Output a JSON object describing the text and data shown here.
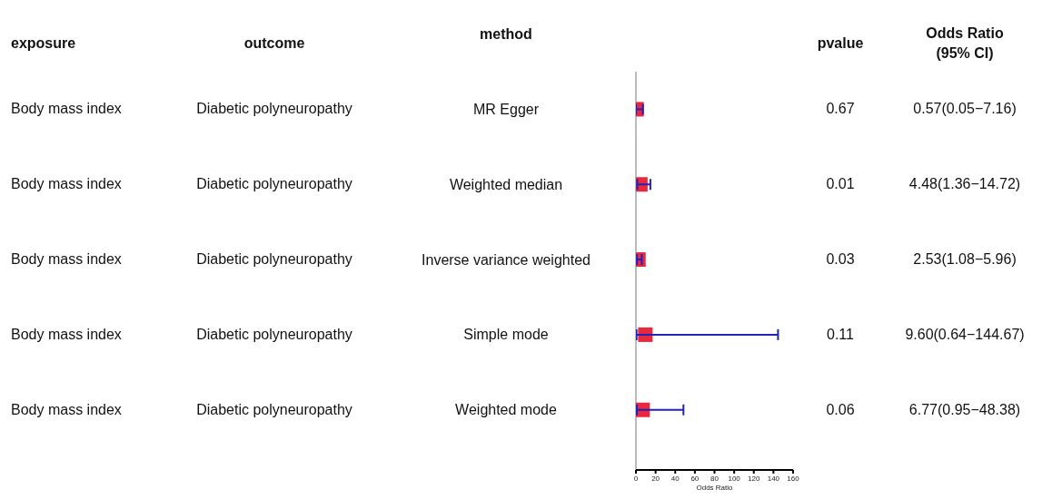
{
  "chart_data": {
    "type": "scatter",
    "ylabel": "method",
    "xlabel": "Odds Ratio",
    "categories": [
      "MR Egger",
      "Weighted median",
      "Inverse variance weighted",
      "Simple mode",
      "Weighted mode"
    ],
    "values": [
      0.57,
      4.48,
      2.53,
      9.6,
      6.77
    ],
    "errors": [
      [
        0.05,
        7.16
      ],
      [
        1.36,
        14.72
      ],
      [
        1.08,
        5.96
      ],
      [
        0.64,
        144.67
      ],
      [
        0.95,
        48.38
      ]
    ],
    "value_labels": [
      "0.57(0.05−7.16)",
      "4.48(1.36−14.72)",
      "2.53(1.08−5.96)",
      "9.60(0.64−144.67)",
      "6.77(0.95−48.38)"
    ],
    "color": "#e8283c",
    "marker": "square",
    "orientation": "horizontal",
    "xlim": [
      0,
      160
    ],
    "xticks": [
      0,
      20,
      40,
      60,
      80,
      100,
      120,
      140,
      160
    ],
    "ref_lines": [
      {
        "axis": "x",
        "value": 0,
        "color": "#bbbbbb"
      }
    ],
    "annotations": [
      "exposure",
      "outcome",
      "pvalue",
      "Odds Ratio (95% CI)",
      "Body mass index",
      "Diabetic polyneuropathy",
      "0.67",
      "Body mass index",
      "Diabetic polyneuropathy",
      "0.01",
      "Body mass index",
      "Diabetic polyneuropathy",
      "0.03",
      "Body mass index",
      "Diabetic polyneuropathy",
      "0.11",
      "Body mass index",
      "Diabetic polyneuropathy",
      "0.06"
    ]
  }
}
